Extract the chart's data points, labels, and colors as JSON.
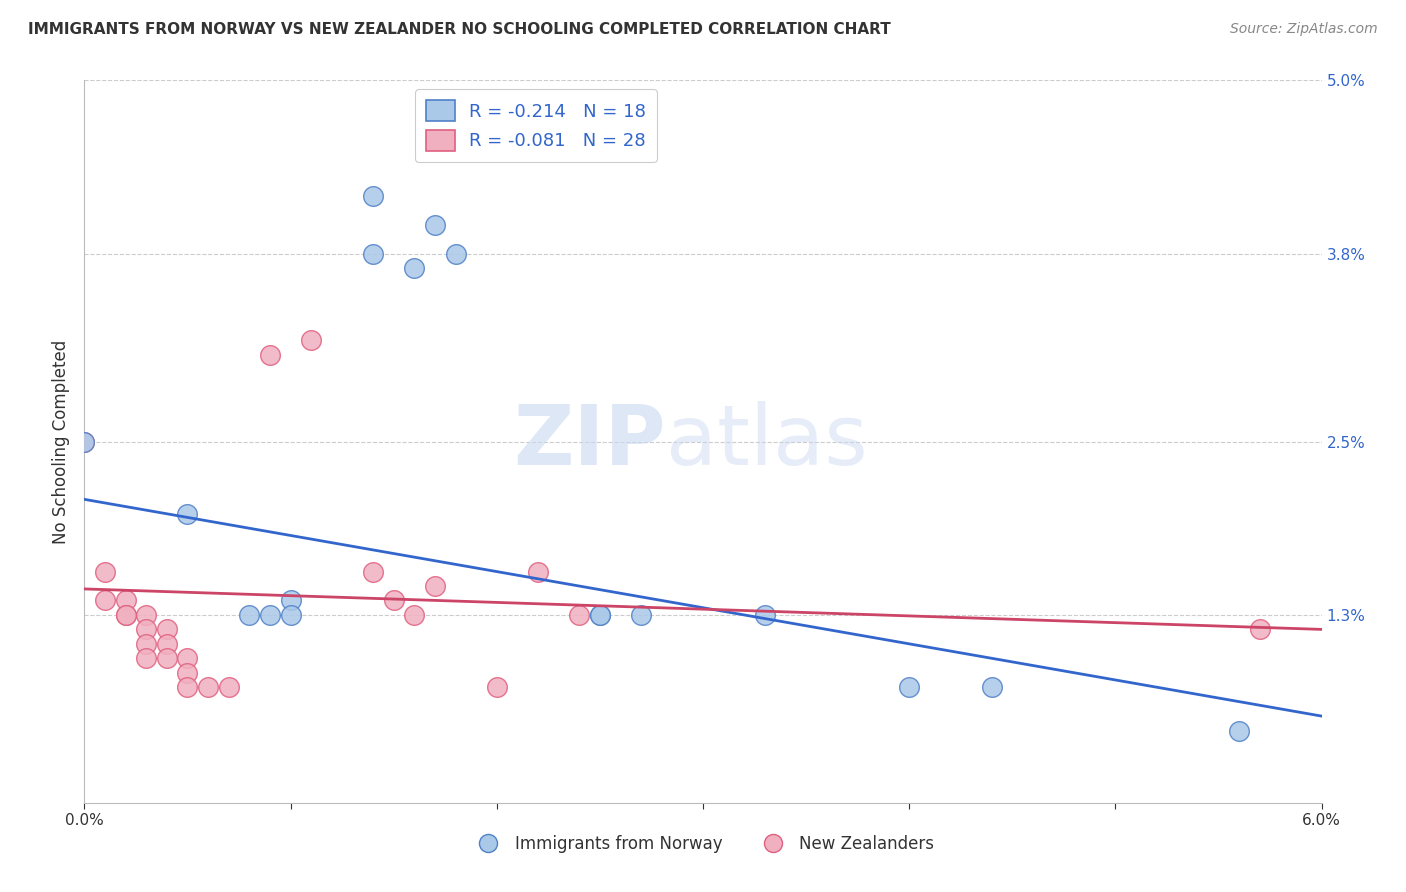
{
  "title": "IMMIGRANTS FROM NORWAY VS NEW ZEALANDER NO SCHOOLING COMPLETED CORRELATION CHART",
  "source": "Source: ZipAtlas.com",
  "ylabel": "No Schooling Completed",
  "xlim": [
    0.0,
    0.06
  ],
  "ylim": [
    0.0,
    0.05
  ],
  "xticks": [
    0.0,
    0.01,
    0.02,
    0.03,
    0.04,
    0.05,
    0.06
  ],
  "xtick_labels": [
    "0.0%",
    "",
    "",
    "",
    "",
    "",
    "6.0%"
  ],
  "yticks_right": [
    0.013,
    0.025,
    0.038,
    0.05
  ],
  "ytick_labels_right": [
    "1.3%",
    "2.5%",
    "3.8%",
    "5.0%"
  ],
  "legend_blue_r": "R = -0.214",
  "legend_blue_n": "N = 18",
  "legend_pink_r": "R = -0.081",
  "legend_pink_n": "N = 28",
  "legend_label_blue": "Immigrants from Norway",
  "legend_label_pink": "New Zealanders",
  "watermark_zip": "ZIP",
  "watermark_atlas": "atlas",
  "blue_color": "#aac8e8",
  "blue_edge_color": "#5080c8",
  "pink_color": "#f0b0c0",
  "pink_edge_color": "#e06080",
  "blue_line_color": "#3366cc",
  "pink_line_color": "#cc4466",
  "blue_scatter": [
    [
      0.0,
      0.025
    ],
    [
      0.005,
      0.02
    ],
    [
      0.008,
      0.013
    ],
    [
      0.009,
      0.013
    ],
    [
      0.01,
      0.014
    ],
    [
      0.01,
      0.013
    ],
    [
      0.014,
      0.038
    ],
    [
      0.014,
      0.042
    ],
    [
      0.016,
      0.037
    ],
    [
      0.017,
      0.04
    ],
    [
      0.018,
      0.038
    ],
    [
      0.025,
      0.013
    ],
    [
      0.025,
      0.013
    ],
    [
      0.027,
      0.013
    ],
    [
      0.033,
      0.013
    ],
    [
      0.04,
      0.008
    ],
    [
      0.044,
      0.008
    ],
    [
      0.056,
      0.005
    ]
  ],
  "pink_scatter": [
    [
      0.0,
      0.025
    ],
    [
      0.001,
      0.016
    ],
    [
      0.001,
      0.014
    ],
    [
      0.002,
      0.014
    ],
    [
      0.002,
      0.013
    ],
    [
      0.002,
      0.013
    ],
    [
      0.003,
      0.013
    ],
    [
      0.003,
      0.012
    ],
    [
      0.003,
      0.011
    ],
    [
      0.003,
      0.01
    ],
    [
      0.004,
      0.012
    ],
    [
      0.004,
      0.011
    ],
    [
      0.004,
      0.01
    ],
    [
      0.005,
      0.01
    ],
    [
      0.005,
      0.009
    ],
    [
      0.005,
      0.008
    ],
    [
      0.006,
      0.008
    ],
    [
      0.007,
      0.008
    ],
    [
      0.009,
      0.031
    ],
    [
      0.011,
      0.032
    ],
    [
      0.014,
      0.016
    ],
    [
      0.015,
      0.014
    ],
    [
      0.016,
      0.013
    ],
    [
      0.017,
      0.015
    ],
    [
      0.02,
      0.008
    ],
    [
      0.022,
      0.016
    ],
    [
      0.024,
      0.013
    ],
    [
      0.057,
      0.012
    ]
  ],
  "blue_line_x": [
    0.0,
    0.06
  ],
  "blue_line_y": [
    0.021,
    0.006
  ],
  "pink_line_x": [
    0.0,
    0.06
  ],
  "pink_line_y": [
    0.0148,
    0.012
  ],
  "bubble_size": 200,
  "grid_color": "#cccccc",
  "bg_color": "#ffffff",
  "title_color": "#333333",
  "source_color": "#888888",
  "tick_color": "#333333",
  "right_tick_color": "#3366cc"
}
